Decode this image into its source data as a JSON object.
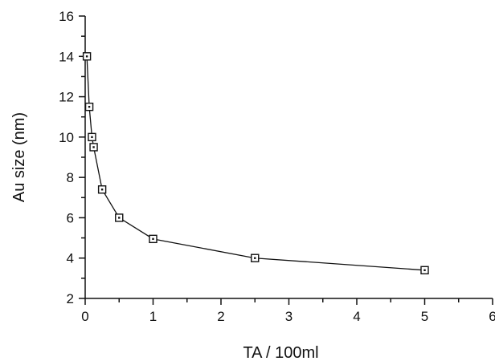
{
  "chart_data": {
    "type": "line",
    "xlabel": "TA / 100ml",
    "ylabel": "Au size (nm)",
    "xlim": [
      0,
      6
    ],
    "ylim": [
      2,
      16
    ],
    "x_ticks": [
      "0",
      "1",
      "2",
      "3",
      "4",
      "5",
      "6"
    ],
    "y_ticks": [
      "2",
      "4",
      "6",
      "8",
      "10",
      "12",
      "14",
      "16"
    ],
    "grid": false,
    "legend": "none",
    "marker": "square",
    "series": [
      {
        "x": [
          0.025,
          0.06,
          0.1,
          0.125,
          0.25,
          0.5,
          1.0,
          2.5,
          5.0
        ],
        "y": [
          14.0,
          11.5,
          10.0,
          9.5,
          7.4,
          6.0,
          4.95,
          4.0,
          3.4
        ]
      }
    ],
    "colors": {
      "line": "#111111",
      "marker_fill": "#ffffff"
    }
  }
}
